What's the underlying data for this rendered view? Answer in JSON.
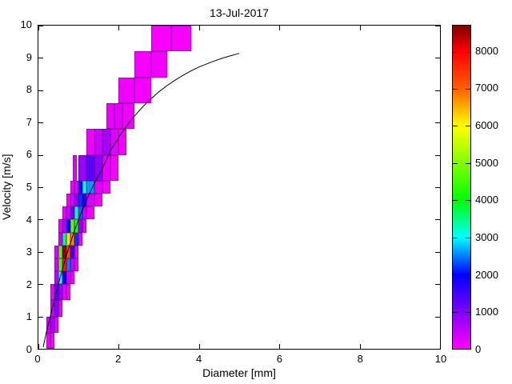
{
  "chart_data": {
    "type": "heatmap",
    "title": "13-Jul-2017",
    "xlabel": "Diameter [mm]",
    "ylabel": "Velocity [m/s]",
    "xlim": [
      0,
      10
    ],
    "ylim": [
      0,
      10
    ],
    "xticks": [
      0,
      2,
      4,
      6,
      8,
      10
    ],
    "yticks": [
      0,
      1,
      2,
      3,
      4,
      5,
      6,
      7,
      8,
      9,
      10
    ],
    "grid": false,
    "colorbar": {
      "vmin": 0,
      "vmax": 8700,
      "ticks": [
        0,
        1000,
        2000,
        3000,
        4000,
        5000,
        6000,
        7000,
        8000
      ],
      "stops": [
        [
          0.0,
          "#ff00ff"
        ],
        [
          0.115,
          "#8000ff"
        ],
        [
          0.23,
          "#0000ff"
        ],
        [
          0.345,
          "#00ffff"
        ],
        [
          0.46,
          "#00ff00"
        ],
        [
          0.575,
          "#80ff00"
        ],
        [
          0.69,
          "#ffff00"
        ],
        [
          0.805,
          "#ff6000"
        ],
        [
          0.92,
          "#ff0000"
        ],
        [
          1.0,
          "#800000"
        ]
      ]
    },
    "curve": {
      "name": "terminal-velocity-fit-curve",
      "points": [
        [
          0.12,
          0.05
        ],
        [
          0.2,
          0.52
        ],
        [
          0.3,
          1.03
        ],
        [
          0.4,
          1.54
        ],
        [
          0.5,
          2.02
        ],
        [
          0.6,
          2.47
        ],
        [
          0.7,
          2.9
        ],
        [
          0.8,
          3.29
        ],
        [
          0.9,
          3.66
        ],
        [
          1.0,
          4.0
        ],
        [
          1.2,
          4.61
        ],
        [
          1.4,
          5.14
        ],
        [
          1.6,
          5.6
        ],
        [
          1.8,
          6.15
        ],
        [
          2.0,
          6.55
        ],
        [
          2.2,
          6.9
        ],
        [
          2.4,
          7.21
        ],
        [
          2.6,
          7.49
        ],
        [
          2.8,
          7.73
        ],
        [
          3.0,
          7.95
        ],
        [
          3.2,
          8.14
        ],
        [
          3.4,
          8.31
        ],
        [
          3.6,
          8.46
        ],
        [
          3.8,
          8.6
        ],
        [
          4.0,
          8.72
        ],
        [
          4.3,
          8.87
        ],
        [
          4.6,
          9.0
        ],
        [
          5.0,
          9.14
        ]
      ]
    },
    "cells": [
      [
        0.2,
        0.3,
        0.0,
        0.5,
        100
      ],
      [
        0.3,
        0.4,
        0.0,
        0.5,
        50
      ],
      [
        0.2,
        0.3,
        0.5,
        1.0,
        300
      ],
      [
        0.3,
        0.4,
        0.5,
        1.0,
        700
      ],
      [
        0.4,
        0.5,
        0.5,
        1.0,
        100
      ],
      [
        0.3,
        0.4,
        1.0,
        1.5,
        400
      ],
      [
        0.4,
        0.5,
        1.0,
        1.5,
        900
      ],
      [
        0.5,
        0.6,
        1.0,
        1.5,
        150
      ],
      [
        0.3,
        0.4,
        1.5,
        2.0,
        150
      ],
      [
        0.4,
        0.5,
        1.5,
        2.0,
        1200
      ],
      [
        0.5,
        0.6,
        1.5,
        2.0,
        800
      ],
      [
        0.6,
        0.7,
        1.5,
        2.0,
        100
      ],
      [
        0.7,
        0.8,
        1.5,
        2.0,
        60
      ],
      [
        0.4,
        0.5,
        2.0,
        2.4,
        500
      ],
      [
        0.5,
        0.6,
        2.0,
        2.4,
        3000
      ],
      [
        0.6,
        0.7,
        2.0,
        2.4,
        2000
      ],
      [
        0.7,
        0.8,
        2.0,
        2.4,
        300
      ],
      [
        0.8,
        0.9,
        2.0,
        2.4,
        80
      ],
      [
        0.4,
        0.5,
        2.4,
        2.8,
        300
      ],
      [
        0.5,
        0.6,
        2.4,
        2.8,
        4500
      ],
      [
        0.6,
        0.7,
        2.4,
        2.8,
        7800
      ],
      [
        0.7,
        0.8,
        2.4,
        2.8,
        2500
      ],
      [
        0.8,
        0.9,
        2.4,
        2.8,
        400
      ],
      [
        0.9,
        1.0,
        2.4,
        2.8,
        100
      ],
      [
        0.4,
        0.5,
        2.8,
        3.2,
        200
      ],
      [
        0.5,
        0.6,
        2.8,
        3.2,
        4600
      ],
      [
        0.6,
        0.7,
        2.8,
        3.2,
        8600
      ],
      [
        0.7,
        0.8,
        2.8,
        3.2,
        7200
      ],
      [
        0.8,
        0.9,
        2.8,
        3.2,
        1500
      ],
      [
        0.9,
        1.0,
        2.8,
        3.2,
        150
      ],
      [
        0.5,
        0.6,
        3.2,
        3.6,
        400
      ],
      [
        0.6,
        0.7,
        3.2,
        3.6,
        3500
      ],
      [
        0.7,
        0.8,
        3.2,
        3.6,
        6200
      ],
      [
        0.8,
        0.9,
        3.2,
        3.6,
        6800
      ],
      [
        0.9,
        1.0,
        3.2,
        3.6,
        2200
      ],
      [
        1.0,
        1.1,
        3.2,
        3.6,
        200
      ],
      [
        0.5,
        0.6,
        3.6,
        4.0,
        150
      ],
      [
        0.6,
        0.7,
        3.6,
        4.0,
        600
      ],
      [
        0.7,
        0.8,
        3.6,
        4.0,
        2000
      ],
      [
        0.8,
        0.9,
        3.6,
        4.0,
        4600
      ],
      [
        0.9,
        1.0,
        3.6,
        4.0,
        4200
      ],
      [
        1.0,
        1.1,
        3.6,
        4.0,
        800
      ],
      [
        1.1,
        1.2,
        3.6,
        4.0,
        150
      ],
      [
        0.6,
        0.7,
        4.0,
        4.4,
        120
      ],
      [
        0.7,
        0.8,
        4.0,
        4.4,
        400
      ],
      [
        0.8,
        0.9,
        4.0,
        4.4,
        1200
      ],
      [
        0.9,
        1.0,
        4.0,
        4.4,
        3200
      ],
      [
        1.0,
        1.1,
        4.0,
        4.4,
        2400
      ],
      [
        1.1,
        1.2,
        4.0,
        4.4,
        400
      ],
      [
        1.2,
        1.4,
        4.0,
        4.4,
        100
      ],
      [
        0.7,
        0.8,
        4.4,
        4.8,
        100
      ],
      [
        0.8,
        0.9,
        4.4,
        4.8,
        300
      ],
      [
        0.9,
        1.0,
        4.4,
        4.8,
        900
      ],
      [
        1.0,
        1.1,
        4.4,
        4.8,
        2200
      ],
      [
        1.1,
        1.2,
        4.4,
        4.8,
        1800
      ],
      [
        1.2,
        1.4,
        4.4,
        4.8,
        300
      ],
      [
        1.4,
        1.6,
        4.4,
        4.8,
        80
      ],
      [
        0.8,
        0.9,
        4.8,
        5.2,
        120
      ],
      [
        0.9,
        1.0,
        4.8,
        5.2,
        250
      ],
      [
        1.0,
        1.1,
        4.8,
        5.2,
        1900
      ],
      [
        1.1,
        1.2,
        4.8,
        5.2,
        3100
      ],
      [
        1.2,
        1.4,
        4.8,
        5.2,
        2600
      ],
      [
        1.4,
        1.6,
        4.8,
        5.2,
        250
      ],
      [
        1.6,
        1.8,
        4.8,
        5.2,
        60
      ],
      [
        0.85,
        0.95,
        5.2,
        6.0,
        200
      ],
      [
        1.0,
        1.2,
        5.2,
        6.0,
        800
      ],
      [
        1.2,
        1.4,
        5.2,
        6.0,
        1300
      ],
      [
        1.4,
        1.6,
        5.2,
        6.0,
        900
      ],
      [
        1.6,
        1.8,
        5.2,
        6.0,
        200
      ],
      [
        1.8,
        2.0,
        5.2,
        6.0,
        60
      ],
      [
        1.2,
        1.4,
        6.0,
        6.8,
        100
      ],
      [
        1.4,
        1.6,
        6.0,
        6.8,
        400
      ],
      [
        1.6,
        1.8,
        6.0,
        6.8,
        700
      ],
      [
        1.8,
        2.0,
        6.0,
        6.8,
        250
      ],
      [
        2.0,
        2.2,
        6.0,
        6.8,
        80
      ],
      [
        1.7,
        1.9,
        6.8,
        7.6,
        150
      ],
      [
        1.9,
        2.1,
        6.8,
        7.6,
        200
      ],
      [
        2.1,
        2.4,
        6.8,
        7.6,
        100
      ],
      [
        2.0,
        2.4,
        7.6,
        8.4,
        120
      ],
      [
        2.4,
        2.8,
        7.6,
        8.4,
        80
      ],
      [
        2.4,
        2.8,
        8.4,
        9.2,
        60
      ],
      [
        2.8,
        3.2,
        8.4,
        9.2,
        90
      ],
      [
        2.8,
        3.3,
        9.2,
        10.0,
        50
      ],
      [
        3.3,
        3.8,
        9.2,
        10.0,
        70
      ]
    ]
  }
}
